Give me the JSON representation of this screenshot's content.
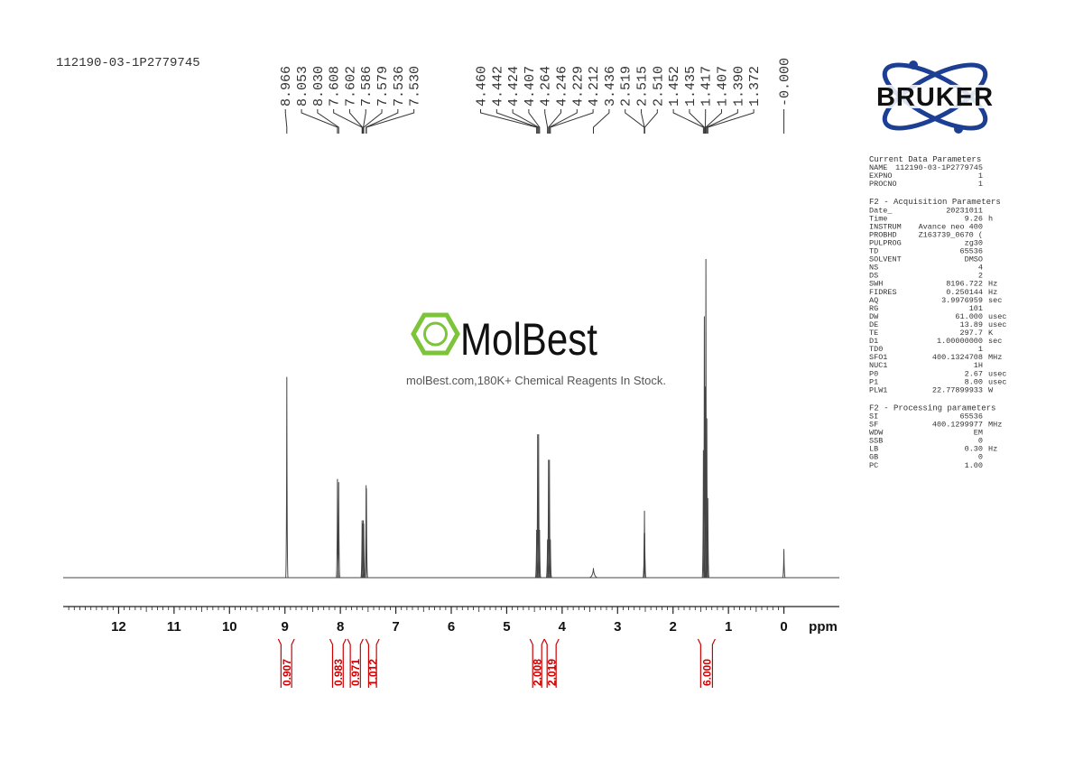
{
  "chart_data": {
    "type": "nmr",
    "title": "112190-03-1P2779745",
    "x_label": "ppm",
    "xlim": [
      13,
      -1
    ],
    "xticks": [
      12,
      11,
      10,
      9,
      8,
      7,
      6,
      5,
      4,
      3,
      2,
      1,
      0
    ],
    "ylim": [
      0,
      100
    ],
    "color": "#444444",
    "peaks": {
      "x": [
        8.966,
        8.053,
        8.03,
        7.608,
        7.602,
        7.586,
        7.579,
        7.536,
        7.53,
        4.46,
        4.442,
        4.424,
        4.407,
        4.264,
        4.246,
        4.229,
        4.212,
        3.436,
        2.519,
        2.515,
        2.51,
        1.452,
        1.435,
        1.417,
        1.407,
        1.39,
        1.372,
        0
      ],
      "x_labels": [
        "8.966",
        "8.053",
        "8.030",
        "7.608",
        "7.602",
        "7.586",
        "7.579",
        "7.536",
        "7.530",
        "4.460",
        "4.442",
        "4.424",
        "4.407",
        "4.264",
        "4.246",
        "4.229",
        "4.212",
        "3.436",
        "2.519",
        "2.515",
        "2.510",
        "1.452",
        "1.435",
        "1.417",
        "1.407",
        "1.390",
        "1.372",
        "-0.000"
      ],
      "values": [
        63,
        31,
        30,
        18,
        17,
        18,
        17,
        29,
        28,
        15,
        45,
        45,
        15,
        12,
        37,
        37,
        12,
        3,
        14,
        21,
        14,
        40,
        82,
        60,
        100,
        50,
        25,
        9
      ]
    },
    "integrals": {
      "color": "#cc0000",
      "ranges": [
        [
          9.12,
          8.83
        ],
        [
          8.19,
          7.9
        ],
        [
          7.87,
          7.59
        ],
        [
          7.54,
          7.3
        ],
        [
          4.58,
          4.32
        ],
        [
          4.32,
          4.06
        ],
        [
          1.55,
          1.24
        ]
      ],
      "values": [
        0.907,
        0.983,
        0.971,
        1.012,
        2.008,
        2.019,
        6
      ],
      "value_labels": [
        "0.907",
        "0.983",
        "0.971",
        "1.012",
        "2.008",
        "2.019",
        "6.000"
      ]
    },
    "logo": "BRUKER",
    "watermark": {
      "name": "MolBest",
      "text": "molBest.com,180K+ Chemical Reagents In Stock."
    },
    "parameters": [
      {
        "title": "Current Data Parameters",
        "rows": [
          [
            "NAME",
            "112190-03-1P2779745"
          ],
          [
            "EXPNO",
            "1"
          ],
          [
            "PROCNO",
            "1"
          ]
        ]
      },
      {
        "title": "F2 - Acquisition Parameters",
        "rows": [
          [
            "Date_",
            "20231011"
          ],
          [
            "Time",
            "9.26",
            "h"
          ],
          [
            "INSTRUM",
            "Avance neo 400"
          ],
          [
            "PROBHD",
            "Z163739_0670 ("
          ],
          [
            "PULPROG",
            "zg30"
          ],
          [
            "TD",
            "65536"
          ],
          [
            "SOLVENT",
            "DMSO"
          ],
          [
            "NS",
            "4"
          ],
          [
            "DS",
            "2"
          ],
          [
            "SWH",
            "8196.722",
            "Hz"
          ],
          [
            "FIDRES",
            "0.250144",
            "Hz"
          ],
          [
            "AQ",
            "3.9976959",
            "sec"
          ],
          [
            "RG",
            "101"
          ],
          [
            "DW",
            "61.000",
            "usec"
          ],
          [
            "DE",
            "13.89",
            "usec"
          ],
          [
            "TE",
            "297.7",
            "K"
          ],
          [
            "D1",
            "1.00000000",
            "sec"
          ],
          [
            "TD0",
            "1"
          ],
          [
            "SFO1",
            "400.1324708",
            "MHz"
          ],
          [
            "NUC1",
            "1H"
          ],
          [
            "P0",
            "2.67",
            "usec"
          ],
          [
            "P1",
            "8.00",
            "usec"
          ],
          [
            "PLW1",
            "22.77899933",
            "W"
          ]
        ]
      },
      {
        "title": "F2 - Processing parameters",
        "rows": [
          [
            "SI",
            "65536"
          ],
          [
            "SF",
            "400.1299977",
            "MHz"
          ],
          [
            "WDW",
            "EM"
          ],
          [
            "SSB",
            "0"
          ],
          [
            "LB",
            "0.30",
            "Hz"
          ],
          [
            "GB",
            "0"
          ],
          [
            "PC",
            "1.00"
          ]
        ]
      }
    ]
  }
}
